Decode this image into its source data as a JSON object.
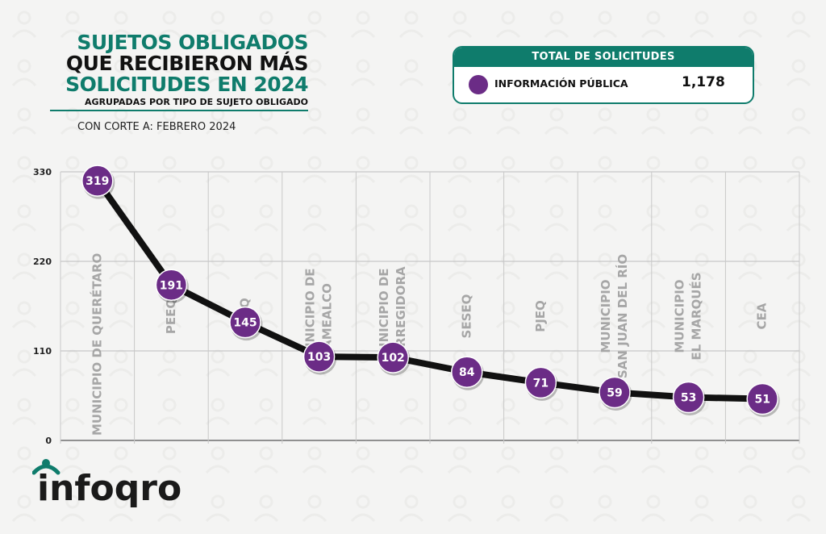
{
  "header": {
    "title_line1": "SUJETOS OBLIGADOS",
    "title_line2": "QUE RECIBIERON MÁS",
    "title_line3": "SOLICITUDES EN 2024",
    "subtitle": "AGRUPADAS POR TIPO DE SUJETO OBLIGADO",
    "cutoff": "CON CORTE A: FEBRERO 2024"
  },
  "total_box": {
    "header": "TOTAL DE SOLICITUDES",
    "label": "INFORMACIÓN PÚBLICA",
    "value": "1,178"
  },
  "logo": {
    "text": "infoqro"
  },
  "colors": {
    "green": "#0f7c6c",
    "purple": "#6b2c86",
    "line": "#111111",
    "category_text": "#a6a6a6"
  },
  "chart_data": {
    "type": "line",
    "categories": [
      [
        "MUNICIPIO DE QUERÉTARO"
      ],
      [
        "PEEQ"
      ],
      [
        "FGEQ"
      ],
      [
        "MUNICIPIO DE",
        "AMEALCO"
      ],
      [
        "MUNICIPIO DE",
        "CORREGIDORA"
      ],
      [
        "SESEQ"
      ],
      [
        "PJEQ"
      ],
      [
        "MUNICIPIO",
        "SAN JUAN DEL RÍO"
      ],
      [
        "MUNICIPIO",
        "EL MARQUÉS"
      ],
      [
        "CEA"
      ]
    ],
    "series": [
      {
        "name": "INFORMACIÓN PÚBLICA",
        "values": [
          319,
          191,
          145,
          103,
          102,
          84,
          71,
          59,
          53,
          51
        ]
      }
    ],
    "yticks": [
      "0",
      "110",
      "220",
      "330"
    ],
    "ylim": [
      0,
      330
    ],
    "grid": true
  }
}
